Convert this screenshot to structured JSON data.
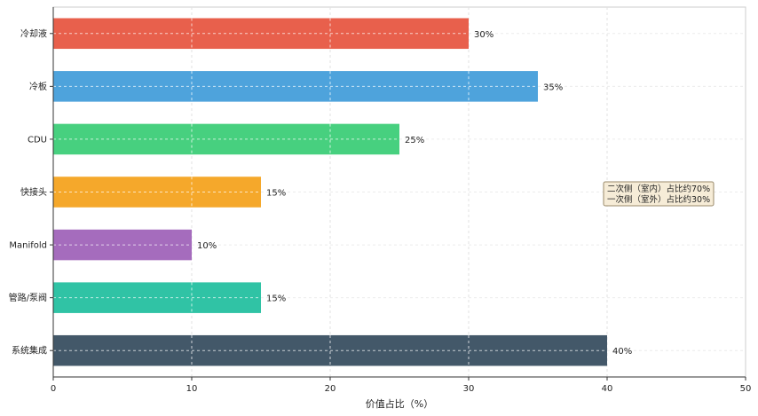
{
  "chart_data": {
    "type": "bar",
    "orientation": "horizontal",
    "categories": [
      "冷却液",
      "冷板",
      "CDU",
      "快接头",
      "Manifold",
      "管路/泵阀",
      "系统集成"
    ],
    "values": [
      30,
      35,
      25,
      15,
      10,
      15,
      40
    ],
    "value_labels": [
      "30%",
      "35%",
      "25%",
      "15%",
      "10%",
      "15%",
      "40%"
    ],
    "colors": [
      "#e8604c",
      "#4ea3dc",
      "#47d07f",
      "#f5a82b",
      "#a56cbd",
      "#30c3a5",
      "#435869"
    ],
    "xlabel": "价值占比（%）",
    "ylabel": "",
    "title": "",
    "xlim": [
      0,
      50
    ],
    "xticks": [
      0,
      10,
      20,
      30,
      40,
      50
    ],
    "grid": true,
    "annotation": {
      "lines": [
        "二次侧（室内）占比约70%",
        "一次侧（室外）占比约30%"
      ],
      "background": "#f6ecd7",
      "border": "#9a8a6a"
    }
  }
}
